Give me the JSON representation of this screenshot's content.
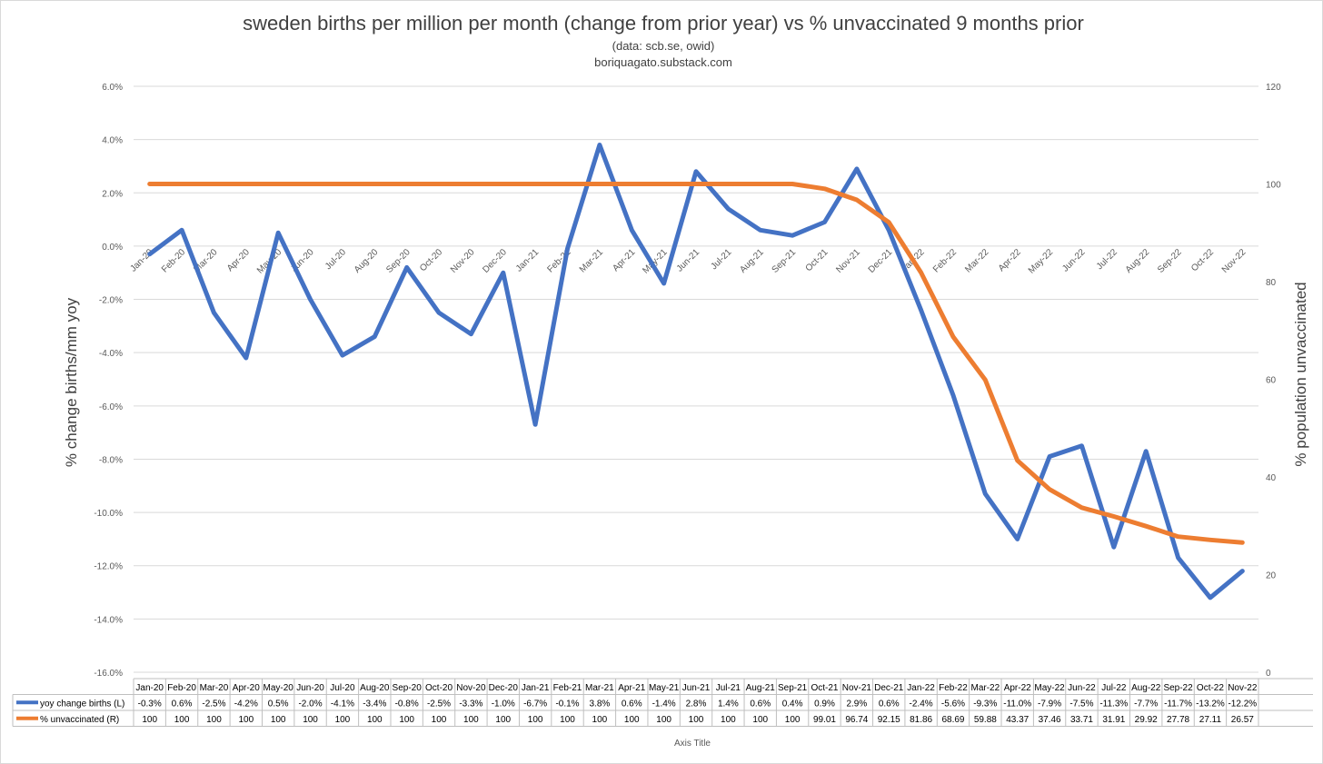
{
  "chart_data": {
    "type": "line",
    "title": "sweden births per million per month (change from prior year) vs % unvaccinated 9 months prior",
    "subtitle_lines": [
      "(data: scb.se, owid)",
      "boriquagato.substack.com"
    ],
    "ylabel_left": "% change births/mm yoy",
    "ylabel_right": "% population unvaccinated",
    "xlabel": "Axis Title",
    "ylim_left": [
      -16,
      6
    ],
    "ylim_right": [
      0,
      120
    ],
    "left_ticks": [
      "6.0%",
      "4.0%",
      "2.0%",
      "0.0%",
      "-2.0%",
      "-4.0%",
      "-6.0%",
      "-8.0%",
      "-10.0%",
      "-12.0%",
      "-14.0%",
      "-16.0%"
    ],
    "right_ticks": [
      "120",
      "100",
      "80",
      "60",
      "40",
      "20",
      "0"
    ],
    "grid": true,
    "categories": [
      "Jan-20",
      "Feb-20",
      "Mar-20",
      "Apr-20",
      "May-20",
      "Jun-20",
      "Jul-20",
      "Aug-20",
      "Sep-20",
      "Oct-20",
      "Nov-20",
      "Dec-20",
      "Jan-21",
      "Feb-21",
      "Mar-21",
      "Apr-21",
      "May-21",
      "Jun-21",
      "Jul-21",
      "Aug-21",
      "Sep-21",
      "Oct-21",
      "Nov-21",
      "Dec-21",
      "Jan-22",
      "Feb-22",
      "Mar-22",
      "Apr-22",
      "May-22",
      "Jun-22",
      "Jul-22",
      "Aug-22",
      "Sep-22",
      "Oct-22",
      "Nov-22"
    ],
    "series": [
      {
        "name": "yoy change births (L)",
        "color": "#4472C4",
        "axis": "left",
        "values": [
          -0.3,
          0.6,
          -2.5,
          -4.2,
          0.5,
          -2.0,
          -4.1,
          -3.4,
          -0.8,
          -2.5,
          -3.3,
          -1.0,
          -6.7,
          -0.1,
          3.8,
          0.6,
          -1.4,
          2.8,
          1.4,
          0.6,
          0.4,
          0.9,
          2.9,
          0.6,
          -2.4,
          -5.6,
          -9.3,
          -11.0,
          -7.9,
          -7.5,
          -11.3,
          -7.7,
          -11.7,
          -13.2,
          -12.2
        ],
        "labels": [
          "-0.3%",
          "0.6%",
          "-2.5%",
          "-4.2%",
          "0.5%",
          "-2.0%",
          "-4.1%",
          "-3.4%",
          "-0.8%",
          "-2.5%",
          "-3.3%",
          "-1.0%",
          "-6.7%",
          "-0.1%",
          "3.8%",
          "0.6%",
          "-1.4%",
          "2.8%",
          "1.4%",
          "0.6%",
          "0.4%",
          "0.9%",
          "2.9%",
          "0.6%",
          "-2.4%",
          "-5.6%",
          "-9.3%",
          "-11.0%",
          "-7.9%",
          "-7.5%",
          "-11.3%",
          "-7.7%",
          "-11.7%",
          "-13.2%",
          "-12.2%"
        ]
      },
      {
        "name": "% unvaccinated (R)",
        "color": "#ED7D31",
        "axis": "right",
        "values": [
          100,
          100,
          100,
          100,
          100,
          100,
          100,
          100,
          100,
          100,
          100,
          100,
          100,
          100,
          100,
          100,
          100,
          100,
          100,
          100,
          100,
          99.01,
          96.74,
          92.15,
          81.86,
          68.69,
          59.88,
          43.37,
          37.46,
          33.71,
          31.91,
          29.92,
          27.78,
          27.11,
          26.57
        ],
        "labels": [
          "100",
          "100",
          "100",
          "100",
          "100",
          "100",
          "100",
          "100",
          "100",
          "100",
          "100",
          "100",
          "100",
          "100",
          "100",
          "100",
          "100",
          "100",
          "100",
          "100",
          "100",
          "99.01",
          "96.74",
          "92.15",
          "81.86",
          "68.69",
          "59.88",
          "43.37",
          "37.46",
          "33.71",
          "31.91",
          "29.92",
          "27.78",
          "27.11",
          "26.57"
        ]
      }
    ]
  }
}
